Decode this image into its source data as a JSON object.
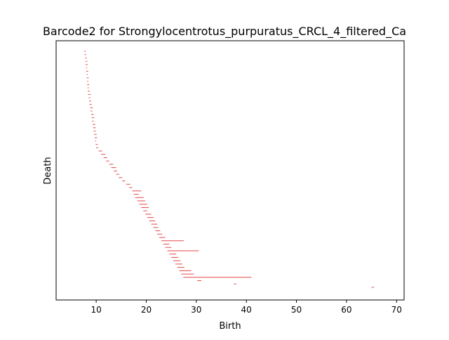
{
  "chart_data": {
    "type": "barcode",
    "title": "Barcode2 for Strongylocentrotus_purpuratus_CRCL_4_filtered_Ca",
    "xlabel": "Birth",
    "ylabel": "Death",
    "xlim": [
      2.0,
      71.5
    ],
    "x_ticks": [
      10,
      20,
      30,
      40,
      50,
      60,
      70
    ],
    "y_ticks": [],
    "bar_color": "#e24a4a",
    "intervals": [
      [
        7.6,
        7.9
      ],
      [
        7.7,
        8.0
      ],
      [
        7.8,
        8.1
      ],
      [
        7.9,
        8.2
      ],
      [
        7.9,
        8.3
      ],
      [
        8.0,
        8.2
      ],
      [
        8.0,
        8.4
      ],
      [
        8.1,
        8.3
      ],
      [
        8.1,
        8.5
      ],
      [
        8.2,
        8.4
      ],
      [
        8.2,
        8.6
      ],
      [
        8.3,
        8.5
      ],
      [
        8.3,
        8.7
      ],
      [
        8.4,
        8.9
      ],
      [
        8.5,
        8.8
      ],
      [
        8.6,
        9.0
      ],
      [
        8.7,
        9.1
      ],
      [
        8.8,
        9.3
      ],
      [
        8.9,
        9.2
      ],
      [
        9.0,
        9.5
      ],
      [
        9.1,
        9.6
      ],
      [
        9.2,
        9.5
      ],
      [
        9.3,
        9.8
      ],
      [
        9.4,
        9.9
      ],
      [
        9.5,
        9.9
      ],
      [
        9.6,
        10.1
      ],
      [
        9.7,
        10.2
      ],
      [
        9.8,
        10.0
      ],
      [
        9.9,
        10.3
      ],
      [
        10.0,
        10.4
      ],
      [
        10.5,
        11.2
      ],
      [
        11.0,
        11.8
      ],
      [
        11.5,
        12.2
      ],
      [
        12.0,
        12.6
      ],
      [
        12.6,
        13.4
      ],
      [
        13.0,
        14.0
      ],
      [
        13.5,
        14.2
      ],
      [
        14.0,
        14.6
      ],
      [
        14.5,
        15.2
      ],
      [
        15.2,
        15.8
      ],
      [
        16.0,
        16.8
      ],
      [
        16.6,
        17.2
      ],
      [
        17.2,
        19.0
      ],
      [
        17.5,
        18.5
      ],
      [
        17.8,
        19.5
      ],
      [
        18.2,
        19.8
      ],
      [
        18.6,
        20.2
      ],
      [
        19.0,
        20.5
      ],
      [
        19.4,
        20.2
      ],
      [
        19.8,
        21.0
      ],
      [
        20.2,
        21.5
      ],
      [
        20.6,
        21.8
      ],
      [
        21.0,
        22.2
      ],
      [
        21.4,
        22.4
      ],
      [
        21.8,
        22.8
      ],
      [
        22.2,
        23.2
      ],
      [
        22.6,
        23.8
      ],
      [
        23.0,
        27.5
      ],
      [
        23.4,
        24.6
      ],
      [
        23.8,
        25.0
      ],
      [
        24.2,
        30.5
      ],
      [
        24.6,
        26.0
      ],
      [
        25.0,
        26.4
      ],
      [
        25.4,
        26.8
      ],
      [
        25.8,
        27.2
      ],
      [
        26.2,
        27.6
      ],
      [
        26.6,
        29.0
      ],
      [
        27.0,
        29.5
      ],
      [
        27.4,
        41.0
      ],
      [
        30.2,
        31.0
      ],
      [
        37.5,
        38.0
      ],
      [
        65.0,
        65.5
      ]
    ]
  }
}
